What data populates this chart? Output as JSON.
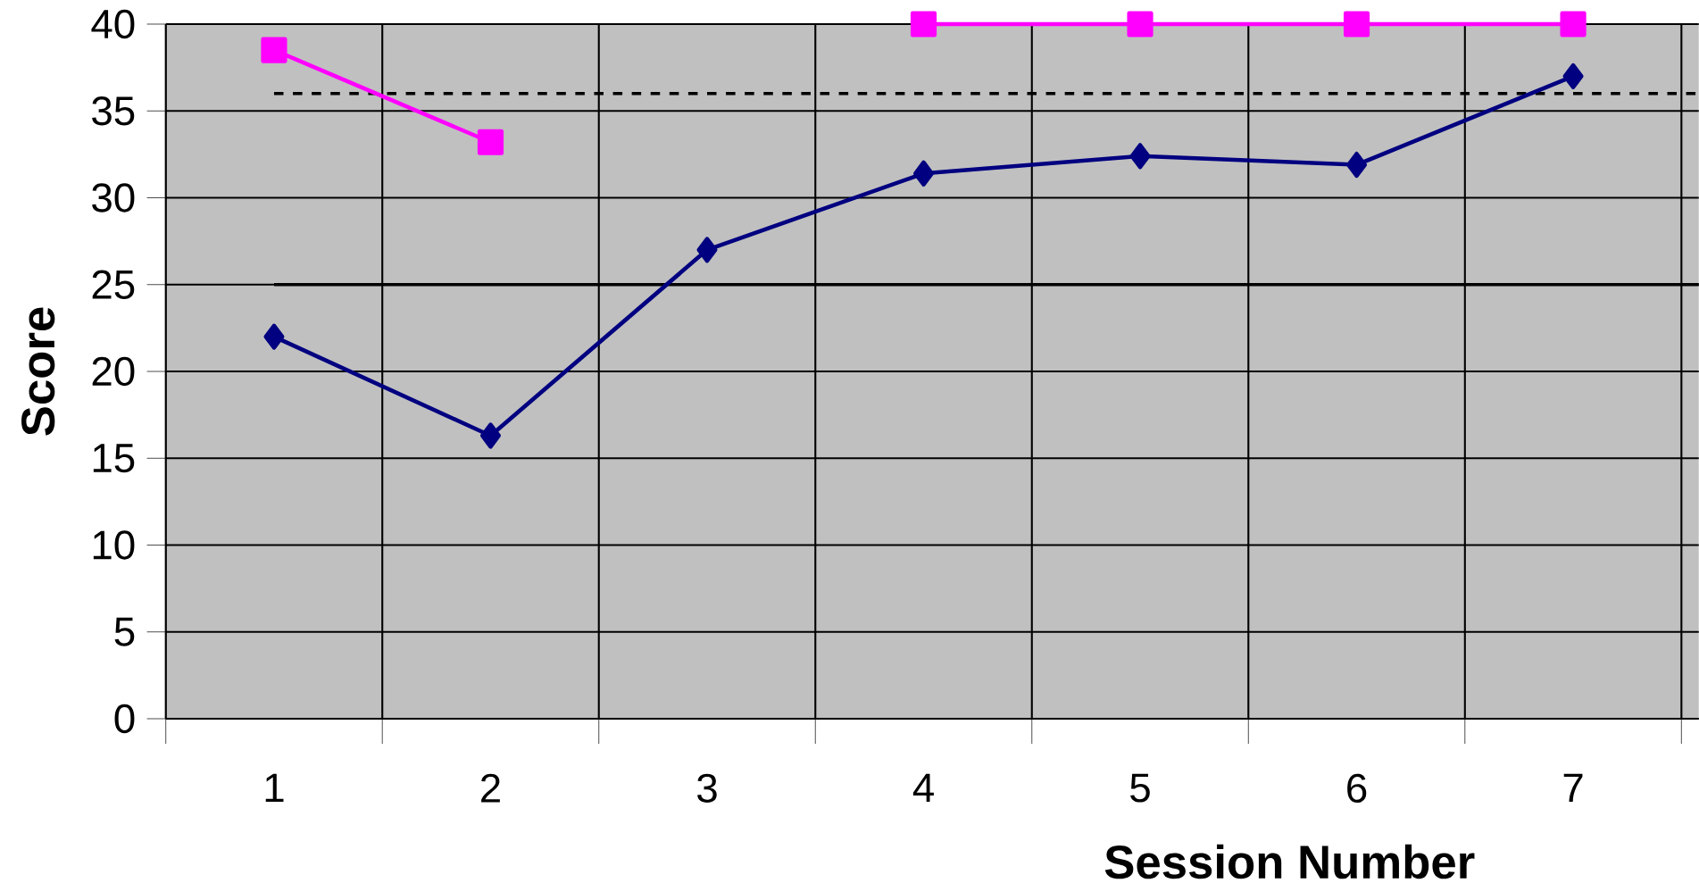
{
  "chart_data": {
    "type": "line",
    "xlabel": "Session Number",
    "ylabel": "Score",
    "categories": [
      "1",
      "2",
      "3",
      "4",
      "5",
      "6",
      "7"
    ],
    "series": [
      {
        "color": "#000080",
        "marker": "diamond",
        "values": [
          22,
          16.3,
          27,
          31.4,
          32.4,
          31.9,
          37
        ]
      },
      {
        "color": "#ff00ff",
        "marker": "square",
        "values": [
          38.5,
          33.2,
          null,
          40,
          40,
          40,
          40
        ]
      }
    ],
    "ylim": [
      0,
      40
    ],
    "yticks": [
      0,
      5,
      10,
      15,
      20,
      25,
      30,
      35,
      40
    ],
    "grid": true,
    "ref_lines": [
      {
        "axis": "y",
        "value": 36,
        "color": "#000000",
        "line_style": "dashed"
      },
      {
        "axis": "y",
        "value": 25,
        "color": "#000000",
        "line_style": "solid"
      }
    ]
  }
}
